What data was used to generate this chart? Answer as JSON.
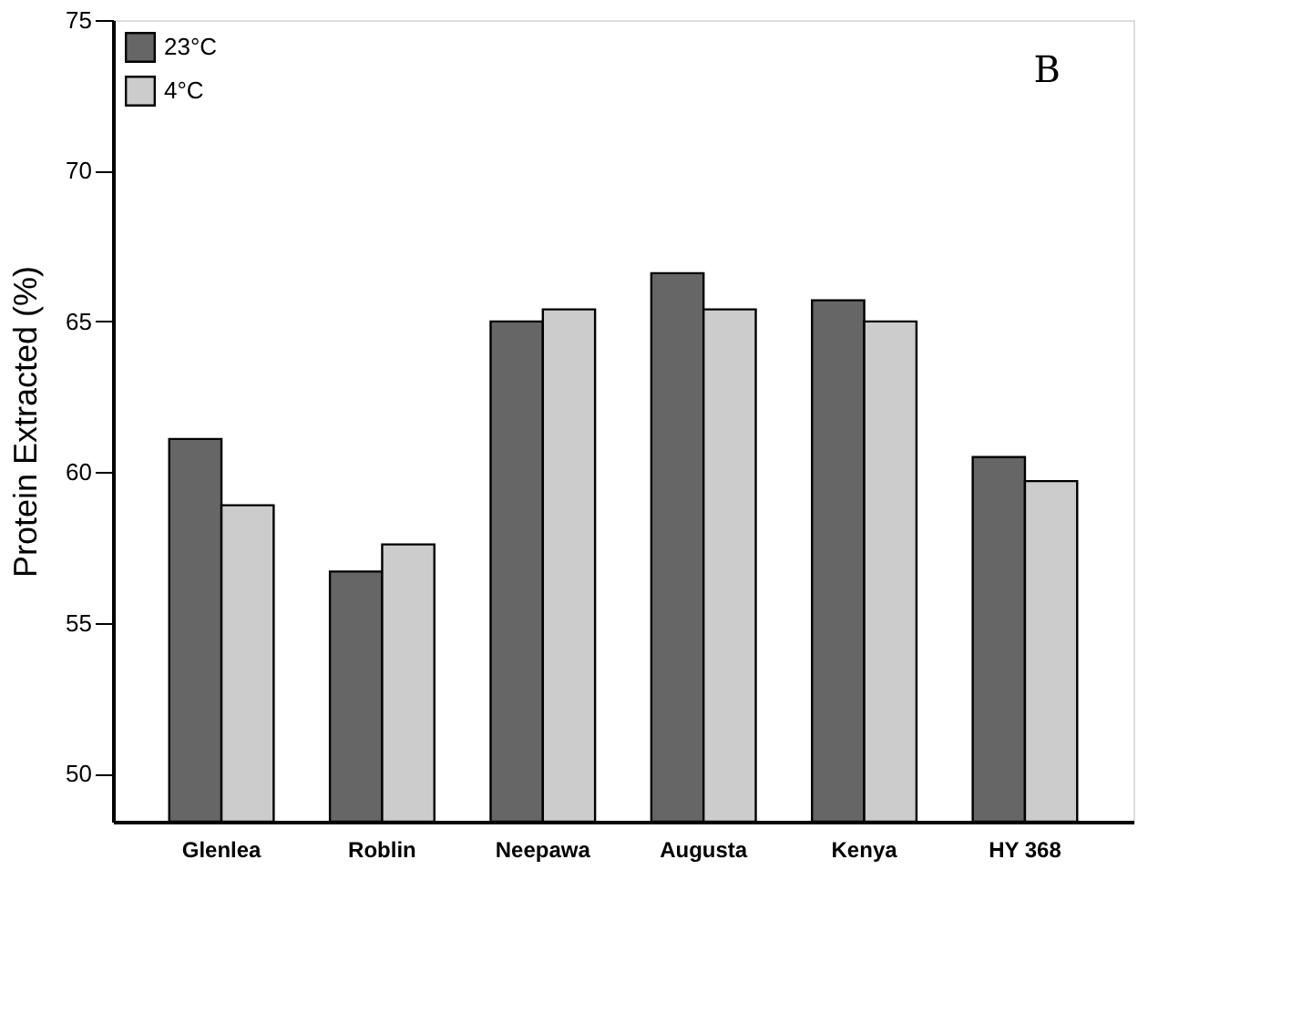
{
  "chart_data": {
    "type": "bar",
    "ylabel": "Protein Extracted (%)",
    "categories": [
      "Glenlea",
      "Roblin",
      "Neepawa",
      "Augusta",
      "Kenya",
      "HY 368"
    ],
    "series": [
      {
        "name": "23°C",
        "color": "#666666",
        "values": [
          61.1,
          56.7,
          65.0,
          66.6,
          65.7,
          60.5
        ]
      },
      {
        "name": "4°C",
        "color": "#cccccc",
        "values": [
          58.9,
          57.6,
          65.4,
          65.4,
          65.0,
          59.7
        ]
      }
    ],
    "ylim": [
      48.4,
      75
    ],
    "yticks": [
      50,
      55,
      60,
      65,
      70,
      75
    ],
    "grid": false,
    "legend": "top left",
    "annotations": [
      "B"
    ]
  }
}
